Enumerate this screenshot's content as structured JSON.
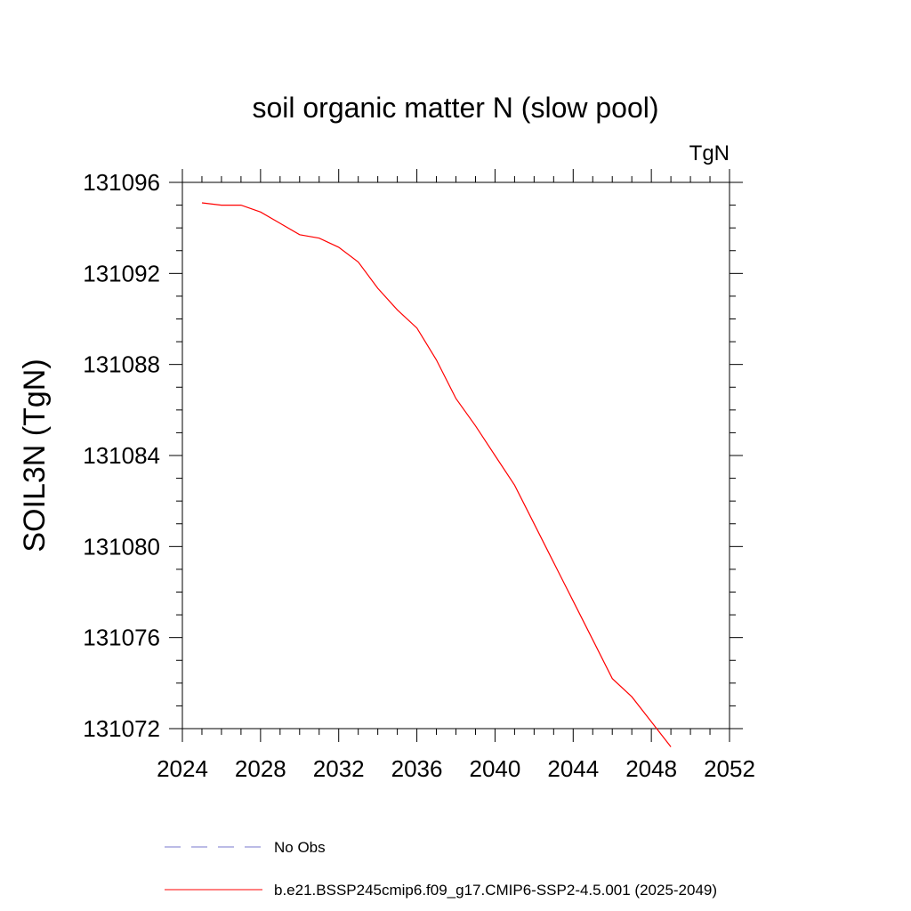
{
  "chart_data": {
    "type": "line",
    "title": "soil organic matter N (slow pool)",
    "units": "TgN",
    "xlabel": "",
    "ylabel": "SOIL3N  (TgN)",
    "xlim": [
      2024,
      2052
    ],
    "ylim": [
      131072,
      131096
    ],
    "xticks": [
      2024,
      2028,
      2032,
      2036,
      2040,
      2044,
      2048,
      2052
    ],
    "yticks": [
      131072,
      131076,
      131080,
      131084,
      131088,
      131092,
      131096
    ],
    "grid": false,
    "legend_position": "bottom",
    "series": [
      {
        "name": "b.e21.BSSP245cmip6.f09_g17.CMIP6-SSP2-4.5.001 (2025-2049)",
        "color": "#ff0000",
        "style": "solid",
        "x": [
          2025,
          2026,
          2027,
          2028,
          2029,
          2030,
          2031,
          2032,
          2033,
          2034,
          2035,
          2036,
          2037,
          2038,
          2039,
          2040,
          2041,
          2042,
          2043,
          2044,
          2045,
          2046,
          2047,
          2048,
          2049
        ],
        "y": [
          131095.1,
          131095.0,
          131095.0,
          131094.7,
          131094.2,
          131093.7,
          131093.55,
          131093.15,
          131092.5,
          131091.35,
          131090.4,
          131089.6,
          131088.2,
          131086.5,
          131085.3,
          131084.0,
          131082.7,
          131081.0,
          131079.3,
          131077.6,
          131075.9,
          131074.2,
          131073.4,
          131072.3,
          131071.2
        ]
      }
    ],
    "legend": [
      {
        "label": "No Obs",
        "color": "#7777cc",
        "style": "dashed"
      },
      {
        "label": "b.e21.BSSP245cmip6.f09_g17.CMIP6-SSP2-4.5.001 (2025-2049)",
        "color": "#ff0000",
        "style": "solid"
      }
    ]
  }
}
